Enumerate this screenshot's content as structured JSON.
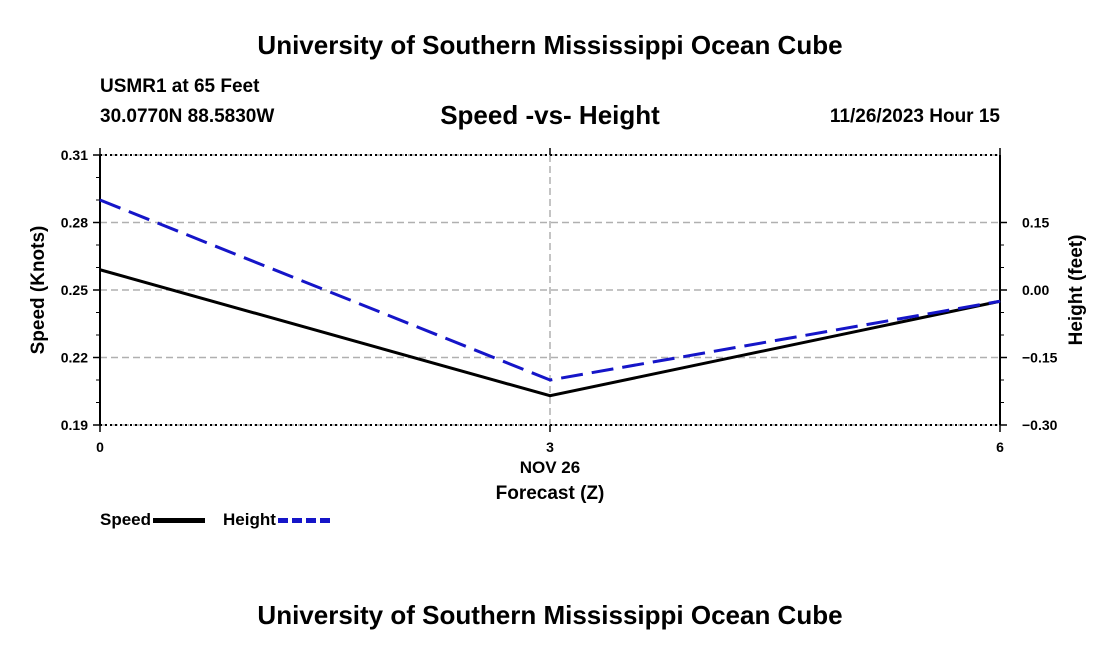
{
  "header": {
    "title": "University of Southern Mississippi Ocean Cube",
    "station": "USMR1 at 65 Feet",
    "coords": "30.0770N  88.5830W",
    "subtitle": "Speed -vs- Height",
    "datetime": "11/26/2023 Hour 15"
  },
  "footer": {
    "title": "University of Southern Mississippi Ocean Cube"
  },
  "legend": {
    "speed_label": "Speed",
    "height_label": "Height"
  },
  "chart_data": {
    "type": "line",
    "title": "Speed -vs- Height",
    "xlabel": "Forecast (Z)",
    "xdate": "NOV 26",
    "ylabel": "Speed (Knots)",
    "y2label": "Height (feet)",
    "x": [
      0,
      3,
      6
    ],
    "xlim": [
      0,
      6
    ],
    "xticks": [
      "0",
      "3",
      "6"
    ],
    "ylim": [
      0.19,
      0.31
    ],
    "yticks": [
      "0.31",
      "0.28",
      "0.25",
      "0.22",
      "0.19"
    ],
    "y2lim": [
      -0.3,
      0.3
    ],
    "y2ticks": [
      "0.15",
      "0.00",
      "−0.15",
      "−0.30"
    ],
    "grid": true,
    "series": [
      {
        "name": "Speed",
        "axis": "left",
        "color": "#000000",
        "style": "solid",
        "values": [
          0.259,
          0.203,
          0.245
        ]
      },
      {
        "name": "Height",
        "axis": "right",
        "color": "#1515c8",
        "style": "dashed",
        "values": [
          0.2,
          -0.2,
          -0.025
        ]
      }
    ]
  }
}
